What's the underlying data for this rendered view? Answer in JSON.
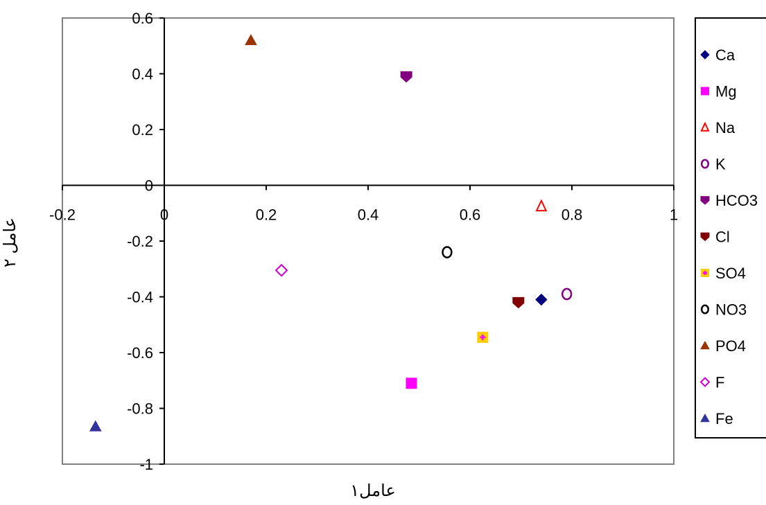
{
  "chart_data": {
    "type": "scatter",
    "title": "",
    "xlabel": "عامل۱",
    "ylabel": "عامل ۲",
    "xlim": [
      -0.2,
      1
    ],
    "ylim": [
      -1,
      0.6
    ],
    "x_ticks": [
      "-0.2",
      "0",
      "0.2",
      "0.4",
      "0.6",
      "0.8",
      "1"
    ],
    "y_ticks": [
      "0.6",
      "0.4",
      "0.2",
      "0",
      "-0.2",
      "-0.4",
      "-0.6",
      "-0.8",
      "-1"
    ],
    "grid": false,
    "legend_position": "right",
    "series": [
      {
        "name": "Ca",
        "marker": "diamond",
        "color": "#000080",
        "x": 0.74,
        "y": -0.41
      },
      {
        "name": "Mg",
        "marker": "square",
        "color": "#ff00ff",
        "x": 0.485,
        "y": -0.71
      },
      {
        "name": "Na",
        "marker": "triangle-open",
        "color": "#ff0000",
        "x": 0.74,
        "y": -0.075
      },
      {
        "name": "K",
        "marker": "circle-open",
        "color": "#800080",
        "x": 0.79,
        "y": -0.39
      },
      {
        "name": "HCO3",
        "marker": "pentagon",
        "color": "#800080",
        "x": 0.475,
        "y": 0.39
      },
      {
        "name": "Cl",
        "marker": "pentagon",
        "color": "#800000",
        "x": 0.695,
        "y": -0.42
      },
      {
        "name": "SO4",
        "marker": "star-square",
        "color": "#ffcc00",
        "accent": "#ff00ff",
        "x": 0.625,
        "y": -0.545
      },
      {
        "name": "NO3",
        "marker": "circle-open",
        "color": "#000000",
        "x": 0.555,
        "y": -0.24
      },
      {
        "name": "PO4",
        "marker": "triangle",
        "color": "#993300",
        "x": 0.17,
        "y": 0.52
      },
      {
        "name": "F",
        "marker": "diamond-open",
        "color": "#cc00cc",
        "x": 0.23,
        "y": -0.305
      },
      {
        "name": "Fe",
        "marker": "triangle",
        "color": "#333399",
        "x": -0.135,
        "y": -0.865
      }
    ]
  }
}
